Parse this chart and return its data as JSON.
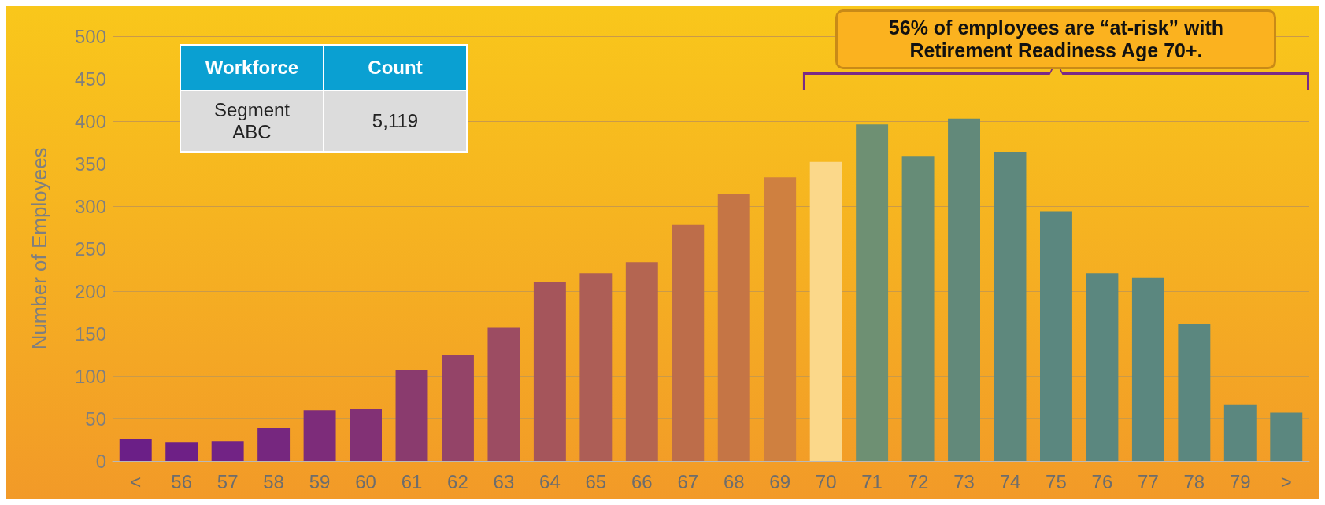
{
  "chart_data": {
    "type": "bar",
    "ylabel": "Number of Employees",
    "categories": [
      "<",
      "56",
      "57",
      "58",
      "59",
      "60",
      "61",
      "62",
      "63",
      "64",
      "65",
      "66",
      "67",
      "68",
      "69",
      "70",
      "71",
      "72",
      "73",
      "74",
      "75",
      "76",
      "77",
      "78",
      "79",
      ">"
    ],
    "values": [
      26,
      22,
      23,
      39,
      60,
      61,
      107,
      125,
      157,
      211,
      221,
      234,
      278,
      314,
      334,
      352,
      396,
      359,
      403,
      364,
      294,
      221,
      216,
      161,
      66,
      57
    ],
    "colors": [
      "#6b1f87",
      "#6e2086",
      "#722385",
      "#76277f",
      "#7d2c7a",
      "#823175",
      "#8a3b6e",
      "#944468",
      "#9c4c62",
      "#a5555b",
      "#ad5e56",
      "#b46551",
      "#bd6d4a",
      "#c57545",
      "#cf8040",
      "#fbd88a",
      "#6e9073",
      "#668c77",
      "#62897a",
      "#5e887d",
      "#5b877f",
      "#5b877f",
      "#5b877f",
      "#5b877f",
      "#5b877f",
      "#5b877f"
    ],
    "ylim": [
      0,
      500
    ],
    "yticks": [
      0,
      50,
      100,
      150,
      200,
      250,
      300,
      350,
      400,
      450,
      500
    ],
    "grid": "y",
    "bands": [
      {
        "axis": "x",
        "from": "70",
        "to": ">",
        "label": "56% of employees are “at-risk” with Retirement Readiness Age 70+."
      }
    ],
    "annotations": [
      "Workforce",
      "Count",
      "Segment ABC",
      "5,119"
    ]
  }
}
